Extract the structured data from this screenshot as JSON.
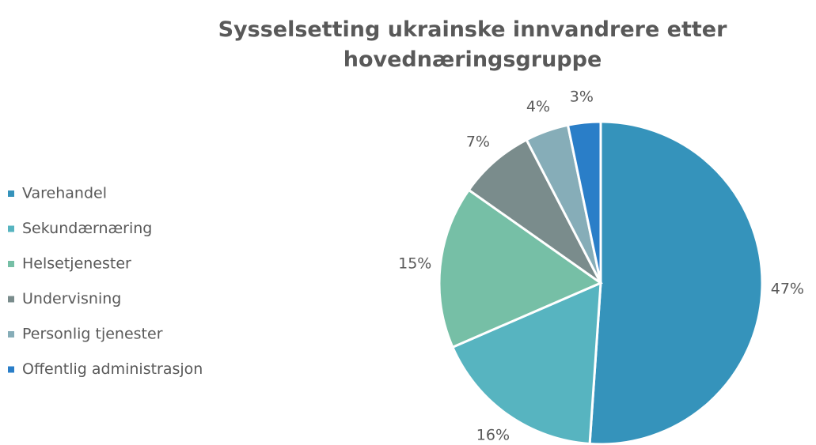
{
  "chart_data": {
    "type": "pie",
    "title": "Sysselsetting ukrainske innvandrere etter hovednæringsgruppe",
    "categories": [
      "Varehandel",
      "Sekundærnæring",
      "Helsetjenester",
      "Undervisning",
      "Personlig tjenester",
      "Offentlig administrasjon"
    ],
    "values": [
      47,
      16,
      15,
      7,
      4,
      3
    ],
    "value_labels": [
      "47%",
      "16%",
      "15%",
      "7%",
      "4%",
      "3%"
    ],
    "colors": [
      "#3593bb",
      "#57b4c0",
      "#76bfa6",
      "#7a8c8c",
      "#86adb8",
      "#2a7ec8"
    ],
    "legend": "left"
  }
}
